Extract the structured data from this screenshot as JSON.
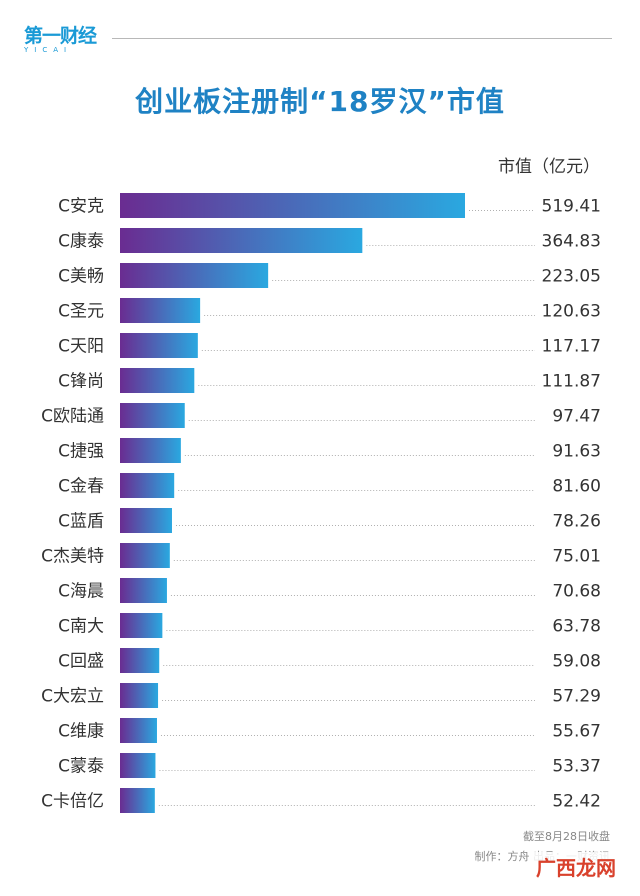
{
  "brand": {
    "name": "第一财经",
    "sub": "YICAI"
  },
  "title": "创业板注册制“18罗汉”市值",
  "unit_label": "市值（亿元）",
  "footer": {
    "date_note": "截至8月28日收盘",
    "credit": "制作：方舟 出品：一财资讯"
  },
  "watermark": "广西龙网",
  "colors": {
    "title": "#1f82c4",
    "bar_start": "#6a2c91",
    "bar_end": "#2aa8e0",
    "leader": "#b0b0b0"
  },
  "chart_data": {
    "type": "bar",
    "orientation": "horizontal",
    "categories": [
      "C安克",
      "C康泰",
      "C美畅",
      "C圣元",
      "C天阳",
      "C锋尚",
      "C欧陆通",
      "C捷强",
      "C金春",
      "C蓝盾",
      "C杰美特",
      "C海晨",
      "C南大",
      "C回盛",
      "C大宏立",
      "C维康",
      "C蒙泰",
      "C卡倍亿"
    ],
    "values": [
      519.41,
      364.83,
      223.05,
      120.63,
      117.17,
      111.87,
      97.47,
      91.63,
      81.6,
      78.26,
      75.01,
      70.68,
      63.78,
      59.08,
      57.29,
      55.67,
      53.37,
      52.42
    ],
    "value_labels": [
      "519.41",
      "364.83",
      "223.05",
      "120.63",
      "117.17",
      "111.87",
      "97.47",
      "91.63",
      "81.60",
      "78.26",
      "75.01",
      "70.68",
      "63.78",
      "59.08",
      "57.29",
      "55.67",
      "53.37",
      "52.42"
    ],
    "xlim": [
      0,
      519.41
    ],
    "grid": false,
    "legend": "none"
  }
}
